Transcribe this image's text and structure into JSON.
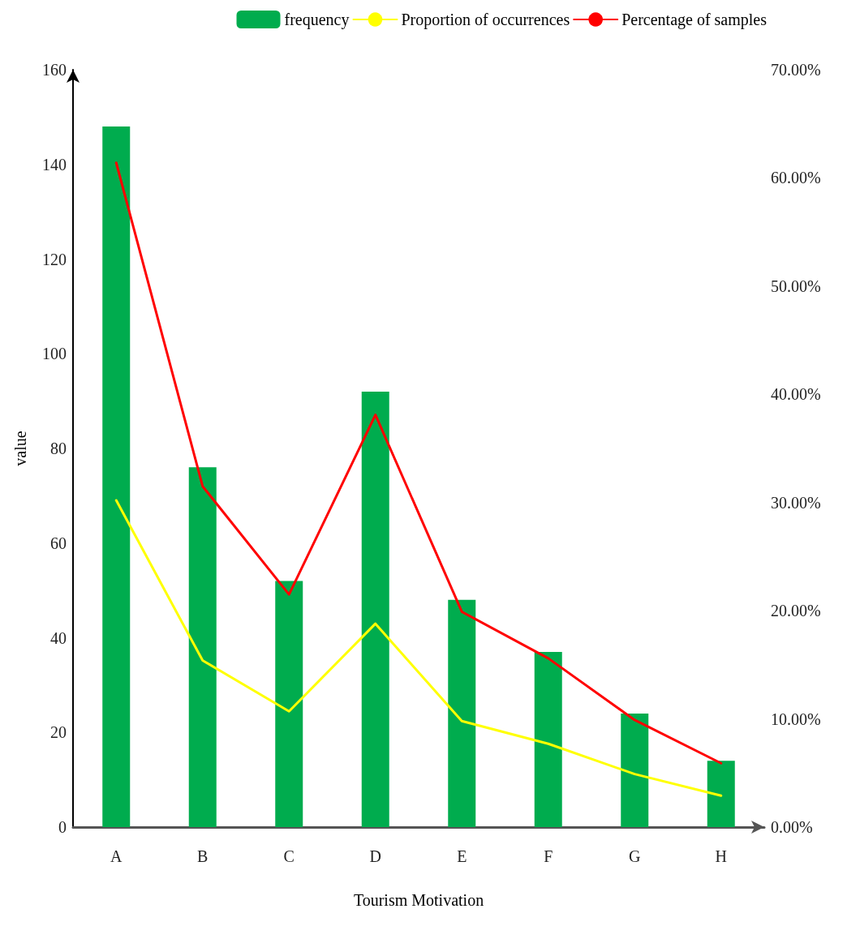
{
  "chart_data": {
    "type": "bar",
    "xlabel": "Tourism Motivation",
    "ylabel": "value",
    "categories": [
      "A",
      "B",
      "C",
      "D",
      "E",
      "F",
      "G",
      "H"
    ],
    "series": [
      {
        "name": "frequency",
        "color": "#00ac4e",
        "values": [
          148,
          76,
          52,
          92,
          48,
          37,
          24,
          14
        ]
      },
      {
        "name": "Proportion of occurrences",
        "type": "line",
        "axis": "y2",
        "color": "#ffff00",
        "values": [
          30.2,
          15.4,
          10.7,
          18.8,
          9.8,
          7.7,
          4.9,
          2.9
        ]
      },
      {
        "name": "Percentage of samples",
        "type": "line",
        "axis": "y2",
        "color": "#ff0000",
        "values": [
          61.4,
          31.5,
          21.5,
          38.1,
          19.9,
          15.6,
          9.9,
          5.9
        ]
      }
    ],
    "ylim": [
      0,
      160
    ],
    "yticks": [
      0,
      20,
      40,
      60,
      80,
      100,
      120,
      140,
      160
    ],
    "y2lim": [
      0,
      70
    ],
    "y2ticks": [
      {
        "value": 0,
        "label": "0.00%"
      },
      {
        "value": 10,
        "label": "10.00%"
      },
      {
        "value": 20,
        "label": "20.00%"
      },
      {
        "value": 30,
        "label": "30.00%"
      },
      {
        "value": 40,
        "label": "40.00%"
      },
      {
        "value": 50,
        "label": "50.00%"
      },
      {
        "value": 60,
        "label": "60.00%"
      },
      {
        "value": 70,
        "label": "70.00%"
      }
    ],
    "grid": false,
    "legend": "top right",
    "marker": "none",
    "line_style": "solid"
  }
}
